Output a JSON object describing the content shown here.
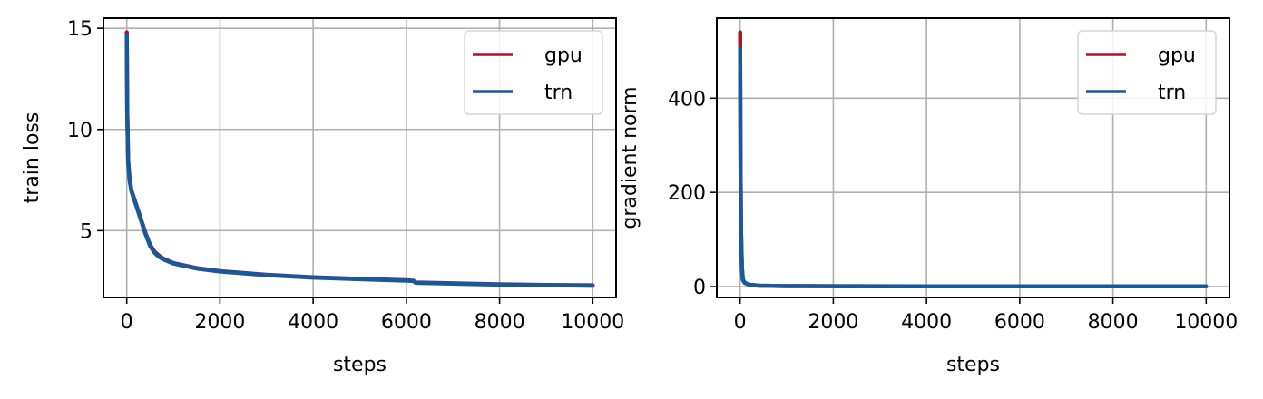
{
  "chart_data": [
    {
      "type": "line",
      "title": "",
      "xlabel": "steps",
      "ylabel": "train loss",
      "xlim": [
        -500,
        10500
      ],
      "ylim": [
        1.7,
        15.5
      ],
      "xticks": [
        0,
        2000,
        4000,
        6000,
        8000,
        10000
      ],
      "yticks": [
        5,
        10,
        15
      ],
      "grid": true,
      "legend_position": "upper right",
      "x": [
        0,
        10,
        30,
        60,
        100,
        200,
        300,
        400,
        500,
        600,
        700,
        800,
        1000,
        1500,
        2000,
        3000,
        4000,
        5000,
        6000,
        6150,
        6200,
        7000,
        8000,
        9000,
        10000
      ],
      "series": [
        {
          "name": "gpu",
          "color": "#a8171f",
          "values": [
            14.8,
            11.0,
            8.5,
            7.6,
            7.0,
            6.3,
            5.6,
            4.9,
            4.3,
            3.95,
            3.75,
            3.6,
            3.4,
            3.15,
            3.0,
            2.82,
            2.7,
            2.62,
            2.55,
            2.53,
            2.44,
            2.4,
            2.35,
            2.32,
            2.3
          ]
        },
        {
          "name": "trn",
          "color": "#145a9c",
          "values": [
            14.6,
            10.8,
            8.4,
            7.5,
            6.95,
            6.25,
            5.55,
            4.85,
            4.25,
            3.9,
            3.7,
            3.57,
            3.38,
            3.13,
            2.98,
            2.8,
            2.68,
            2.6,
            2.53,
            2.51,
            2.42,
            2.38,
            2.33,
            2.3,
            2.28
          ]
        }
      ]
    },
    {
      "type": "line",
      "title": "",
      "xlabel": "steps",
      "ylabel": "gradient norm",
      "xlim": [
        -500,
        10500
      ],
      "ylim": [
        -23,
        570
      ],
      "xticks": [
        0,
        2000,
        4000,
        6000,
        8000,
        10000
      ],
      "yticks": [
        0,
        200,
        400
      ],
      "grid": true,
      "legend_position": "upper right",
      "x": [
        0,
        5,
        10,
        20,
        40,
        60,
        100,
        200,
        400,
        1000,
        2000,
        4000,
        6000,
        8000,
        10000
      ],
      "series": [
        {
          "name": "gpu",
          "color": "#a8171f",
          "values": [
            540,
            420,
            250,
            120,
            40,
            15,
            8,
            4,
            2,
            1,
            0.8,
            0.6,
            0.5,
            0.5,
            0.5
          ]
        },
        {
          "name": "trn",
          "color": "#145a9c",
          "values": [
            505,
            400,
            240,
            115,
            38,
            14,
            8,
            4,
            2,
            1,
            0.8,
            0.6,
            0.5,
            0.5,
            0.5
          ]
        }
      ]
    }
  ],
  "labels": {
    "left_ylabel": "train loss",
    "left_xlabel": "steps",
    "right_ylabel": "gradient norm",
    "right_xlabel": "steps",
    "legend": [
      "gpu",
      "trn"
    ]
  }
}
